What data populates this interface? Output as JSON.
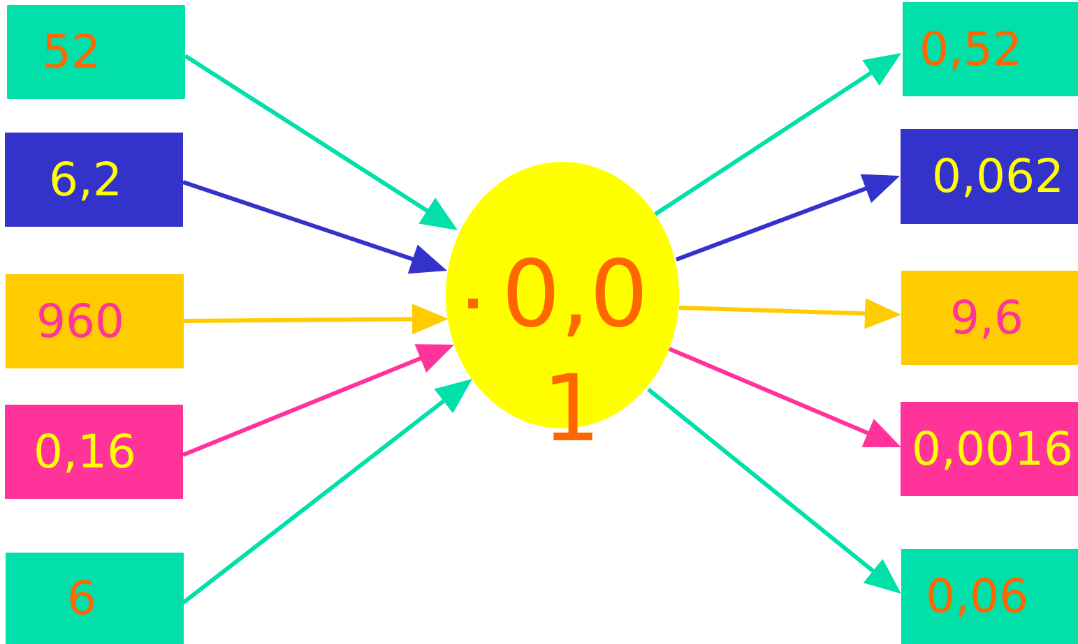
{
  "multiplier": {
    "dot": "·",
    "line1": "0,0",
    "line2": "1",
    "fill": "#FFFF00",
    "text_color": "#FF6600"
  },
  "colors": {
    "teal": "#00E0A8",
    "blue": "#3333CC",
    "amber": "#FFCC00",
    "pink": "#FF3399",
    "orange_text": "#FF6600",
    "yellow_text": "#FFFF00",
    "pink_text": "#FF3399"
  },
  "inputs": [
    {
      "value": "52",
      "color": "teal",
      "text": "orange_text"
    },
    {
      "value": "6,2",
      "color": "blue",
      "text": "yellow_text"
    },
    {
      "value": "960",
      "color": "amber",
      "text": "pink_text"
    },
    {
      "value": "0,16",
      "color": "pink",
      "text": "yellow_text"
    },
    {
      "value": "6",
      "color": "teal",
      "text": "orange_text"
    }
  ],
  "outputs": [
    {
      "value": "0,52",
      "color": "teal",
      "text": "orange_text"
    },
    {
      "value": "0,062",
      "color": "blue",
      "text": "yellow_text"
    },
    {
      "value": "9,6",
      "color": "amber",
      "text": "pink_text"
    },
    {
      "value": "0,0016",
      "color": "pink",
      "text": "yellow_text"
    },
    {
      "value": "0,06",
      "color": "teal",
      "text": "orange_text"
    }
  ]
}
